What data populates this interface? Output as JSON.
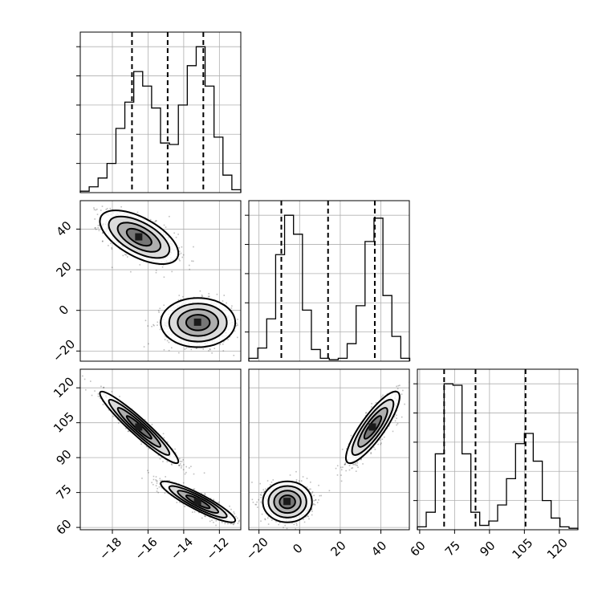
{
  "chart_data": {
    "type": "corner",
    "grid": true,
    "axes": {
      "p0": {
        "range": [
          -19.8,
          -10.8
        ],
        "ticks": [
          -18,
          -16,
          -14,
          -12
        ]
      },
      "p1": {
        "range": [
          -25,
          54
        ],
        "ticks": [
          -20,
          0,
          20,
          40
        ]
      },
      "p2": {
        "range": [
          59,
          128
        ],
        "ticks": [
          60,
          75,
          90,
          105,
          120
        ]
      }
    },
    "tick_labels": {
      "p0": [
        "−18",
        "−16",
        "−14",
        "−12"
      ],
      "p1": [
        "−20",
        "0",
        "20",
        "40"
      ],
      "p2": [
        "60",
        "75",
        "90",
        "105",
        "120"
      ]
    },
    "histograms": {
      "p0": {
        "edges": [
          -19.8,
          -19.3,
          -18.8,
          -18.3,
          -17.8,
          -17.3,
          -16.8,
          -16.3,
          -15.8,
          -15.3,
          -14.8,
          -14.3,
          -13.8,
          -13.3,
          -12.8,
          -12.3,
          -11.8,
          -11.3,
          -10.8
        ],
        "counts": [
          0.01,
          0.04,
          0.1,
          0.2,
          0.44,
          0.62,
          0.83,
          0.73,
          0.58,
          0.34,
          0.33,
          0.6,
          0.87,
          1.0,
          0.73,
          0.38,
          0.12,
          0.02
        ],
        "quantiles": [
          -16.9,
          -14.9,
          -12.9
        ]
      },
      "p1": {
        "edges": [
          -25,
          -20.6,
          -16.2,
          -11.8,
          -7.4,
          -3.0,
          1.4,
          5.8,
          10.2,
          14.6,
          19.0,
          23.4,
          27.8,
          32.2,
          36.6,
          41.0,
          45.4,
          49.8,
          54.2
        ],
        "counts": [
          0.02,
          0.09,
          0.29,
          0.73,
          1.0,
          0.87,
          0.35,
          0.08,
          0.02,
          0.01,
          0.02,
          0.12,
          0.38,
          0.82,
          0.98,
          0.45,
          0.17,
          0.02
        ],
        "quantiles": [
          -9.0,
          14.0,
          37.0
        ]
      },
      "p2": {
        "edges": [
          59,
          62.8,
          66.7,
          70.5,
          74.3,
          78.2,
          82.0,
          85.8,
          89.7,
          93.5,
          97.3,
          101.2,
          105.0,
          108.8,
          112.7,
          116.5,
          120.3,
          124.2,
          128
        ],
        "counts": [
          0.02,
          0.12,
          0.52,
          1.0,
          0.99,
          0.52,
          0.12,
          0.03,
          0.06,
          0.17,
          0.35,
          0.59,
          0.66,
          0.47,
          0.2,
          0.08,
          0.02,
          0.01
        ],
        "quantiles": [
          70.5,
          84.0,
          105.5
        ]
      }
    },
    "clusters": [
      {
        "p0": -16.5,
        "p1": 36.0,
        "p2": 103.0,
        "s0": 1.0,
        "s1": 6.0,
        "s2": 7.0,
        "r01": -0.6,
        "r02": -0.95,
        "r12": 0.85
      },
      {
        "p0": -13.2,
        "p1": -6.0,
        "p2": 71.0,
        "s0": 0.95,
        "s1": 5.5,
        "s2": 4.0,
        "r01": 0.0,
        "r02": -0.9,
        "r12": 0.0
      }
    ]
  }
}
